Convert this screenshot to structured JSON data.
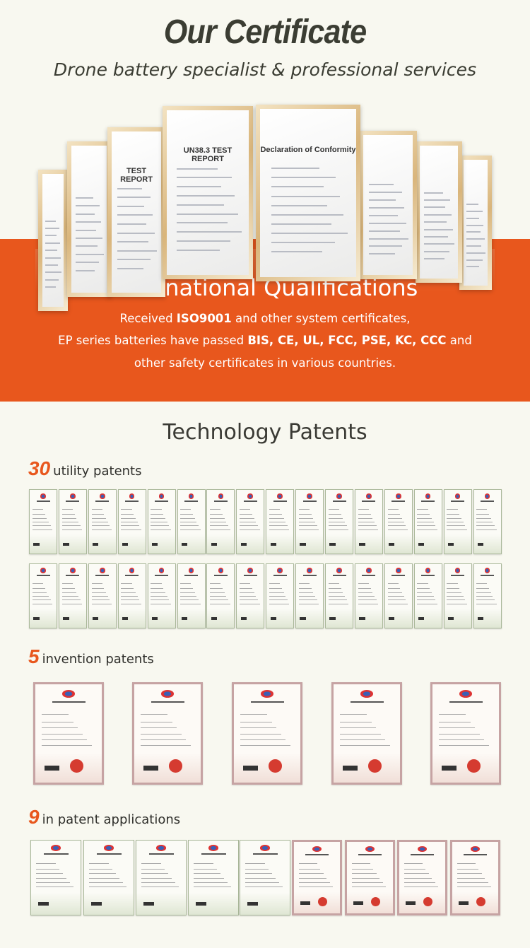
{
  "header": {
    "title": "Our Certificate",
    "subtitle": "Drone battery specialist & professional services"
  },
  "showcase": {
    "certificates": [
      {
        "title": ""
      },
      {
        "title": ""
      },
      {
        "title": "TEST REPORT"
      },
      {
        "title": "UN38.3 TEST REPORT"
      },
      {
        "title": "Declaration of Conformity"
      },
      {
        "title": ""
      },
      {
        "title": ""
      },
      {
        "title": ""
      }
    ]
  },
  "qualifications": {
    "heading": "International Qualifications",
    "line1_pre": "Received ",
    "line1_bold": "ISO9001",
    "line1_post": " and other system certificates,",
    "line2_pre": "EP series batteries have passed ",
    "line2_bold": "BIS, CE, UL, FCC, PSE, KC, CCC",
    "line2_post": " and",
    "line3": "other safety certificates in various countries.",
    "accent_color": "#e8571d"
  },
  "patents": {
    "heading": "Technology Patents",
    "utility": {
      "count": "30",
      "label": "utility patents"
    },
    "invention": {
      "count": "5",
      "label": "invention patents"
    },
    "applications": {
      "count": "9",
      "label": "in patent applications"
    }
  }
}
